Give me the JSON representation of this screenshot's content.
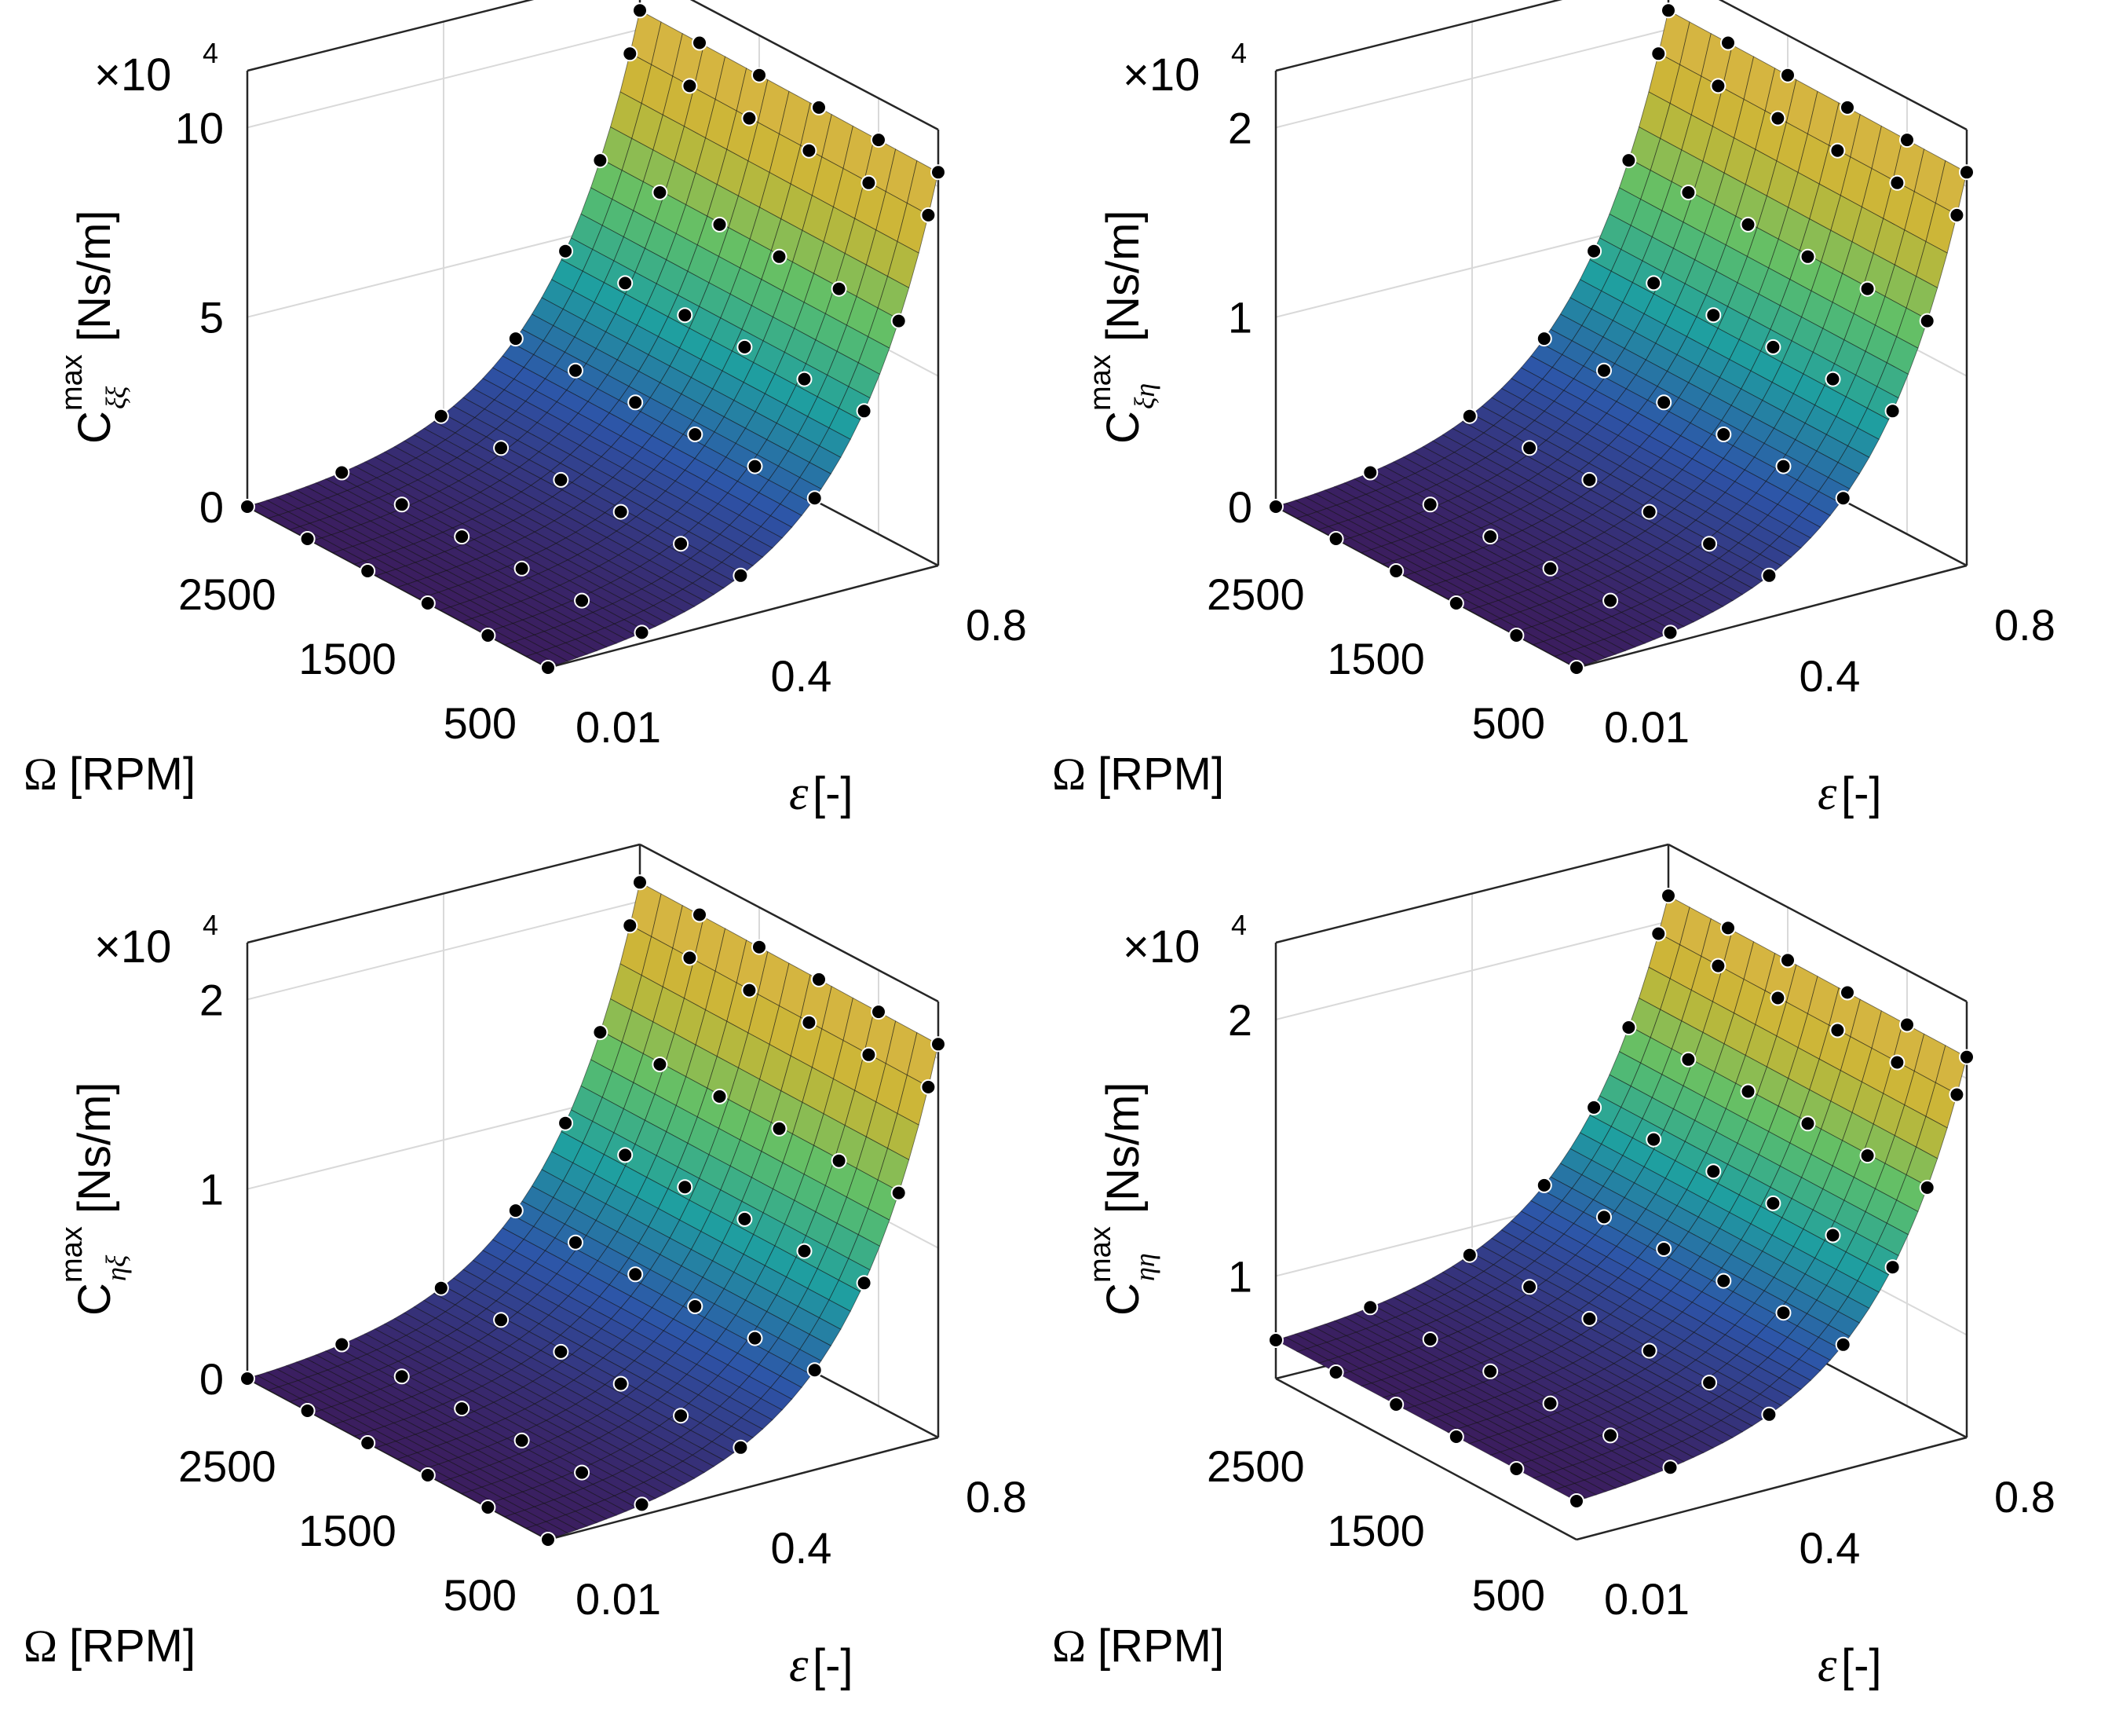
{
  "colors": {
    "low": "#3b1d5e",
    "mid_low": "#2d54a8",
    "mid": "#1f9fa0",
    "mid_high": "#5ec069",
    "high": "#c9b634",
    "top": "#d9b445",
    "marker": "#000000",
    "grid": "#d9d9d9",
    "axis": "#262626"
  },
  "chart_data": [
    {
      "type": "surface",
      "panel": "top-left",
      "exponent_label": {
        "times": "×10",
        "power": "4"
      },
      "zlabel": {
        "symbol": "C",
        "superscript": "max",
        "subscript": "ξξ",
        "unit": "[Ns/m]"
      },
      "xlabel": {
        "symbol": "Ω",
        "unit": "[RPM]"
      },
      "ylabel": {
        "symbol": "ε",
        "unit": "[-]"
      },
      "x_ticks": [
        "2500",
        "1500",
        "500"
      ],
      "y_ticks": [
        "0.01",
        "0.4",
        "0.8"
      ],
      "z_ticks": [
        "0",
        "5",
        "10"
      ],
      "z_tick_values": [
        0,
        5,
        10
      ],
      "zlim": [
        0,
        11.5
      ],
      "omega_range": [
        500,
        3000
      ],
      "eps_range": [
        0.01,
        0.8
      ],
      "z_max": 10.5,
      "markers_omega": [
        3000,
        2500,
        2000,
        1500,
        1000,
        500
      ],
      "markers_eps": [
        0.01,
        0.2,
        0.4,
        0.55,
        0.65,
        0.72,
        0.78,
        0.8
      ]
    },
    {
      "type": "surface",
      "panel": "top-right",
      "exponent_label": {
        "times": "×10",
        "power": "4"
      },
      "zlabel": {
        "symbol": "C",
        "superscript": "max",
        "subscript": "ξη",
        "unit": "[Ns/m]"
      },
      "xlabel": {
        "symbol": "Ω",
        "unit": "[RPM]"
      },
      "ylabel": {
        "symbol": "ε",
        "unit": "[-]"
      },
      "x_ticks": [
        "2500",
        "1500",
        "500"
      ],
      "y_ticks": [
        "0.01",
        "0.4",
        "0.8"
      ],
      "z_ticks": [
        "0",
        "1",
        "2"
      ],
      "z_tick_values": [
        0,
        1,
        2
      ],
      "zlim": [
        0,
        2.3
      ],
      "omega_range": [
        500,
        3000
      ],
      "eps_range": [
        0.01,
        0.8
      ],
      "z_max": 2.1,
      "markers_omega": [
        3000,
        2500,
        2000,
        1500,
        1000,
        500
      ],
      "markers_eps": [
        0.01,
        0.2,
        0.4,
        0.55,
        0.65,
        0.72,
        0.78,
        0.8
      ]
    },
    {
      "type": "surface",
      "panel": "bottom-left",
      "exponent_label": {
        "times": "×10",
        "power": "4"
      },
      "zlabel": {
        "symbol": "C",
        "superscript": "max",
        "subscript": "ηξ",
        "unit": "[Ns/m]"
      },
      "xlabel": {
        "symbol": "Ω",
        "unit": "[RPM]"
      },
      "ylabel": {
        "symbol": "ε",
        "unit": "[-]"
      },
      "x_ticks": [
        "2500",
        "1500",
        "500"
      ],
      "y_ticks": [
        "0.01",
        "0.4",
        "0.8"
      ],
      "z_ticks": [
        "0",
        "1",
        "2"
      ],
      "z_tick_values": [
        0,
        1,
        2
      ],
      "zlim": [
        0,
        2.3
      ],
      "omega_range": [
        500,
        3000
      ],
      "eps_range": [
        0.01,
        0.8
      ],
      "z_max": 2.1,
      "markers_omega": [
        3000,
        2500,
        2000,
        1500,
        1000,
        500
      ],
      "markers_eps": [
        0.01,
        0.2,
        0.4,
        0.55,
        0.65,
        0.72,
        0.78,
        0.8
      ]
    },
    {
      "type": "surface",
      "panel": "bottom-right",
      "exponent_label": {
        "times": "×10",
        "power": "4"
      },
      "zlabel": {
        "symbol": "C",
        "superscript": "max",
        "subscript": "ηη",
        "unit": "[Ns/m]"
      },
      "xlabel": {
        "symbol": "Ω",
        "unit": "[RPM]"
      },
      "ylabel": {
        "symbol": "ε",
        "unit": "[-]"
      },
      "x_ticks": [
        "2500",
        "1500",
        "500"
      ],
      "y_ticks": [
        "0.01",
        "0.4",
        "0.8"
      ],
      "z_ticks": [
        "1",
        "2"
      ],
      "z_tick_values": [
        1,
        2
      ],
      "zlim": [
        0.6,
        2.3
      ],
      "omega_range": [
        500,
        3000
      ],
      "eps_range": [
        0.01,
        0.8
      ],
      "z_max": 2.1,
      "z_min": 0.75,
      "markers_omega": [
        3000,
        2500,
        2000,
        1500,
        1000,
        500
      ],
      "markers_eps": [
        0.01,
        0.2,
        0.4,
        0.55,
        0.65,
        0.72,
        0.78,
        0.8
      ]
    }
  ]
}
